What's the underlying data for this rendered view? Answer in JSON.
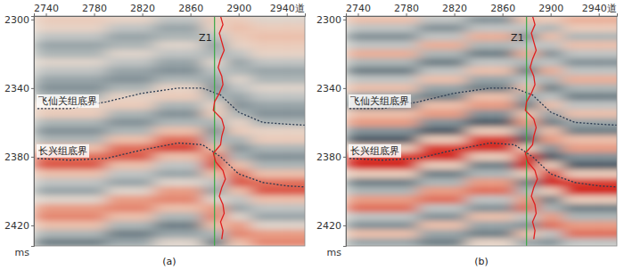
{
  "chart_data": [
    {
      "type": "heatmap",
      "title": "(a)",
      "y_label": "ms",
      "xlim": [
        2730,
        2955
      ],
      "ylim": [
        2298,
        2432
      ],
      "xticks": [
        2740,
        2780,
        2820,
        2860,
        2900,
        {
          "value": 2940,
          "label": "2940道"
        }
      ],
      "yticks": [
        2300,
        2340,
        2380,
        2420
      ],
      "zlim": [
        -1,
        1
      ],
      "cell_x": [
        2740,
        2760,
        2780,
        2800,
        2820,
        2840,
        2860,
        2880,
        2900,
        2920,
        2940,
        2960
      ],
      "cell_y": [
        2300,
        2305,
        2310,
        2315,
        2320,
        2325,
        2330,
        2335,
        2340,
        2345,
        2350,
        2355,
        2360,
        2365,
        2370,
        2375,
        2380,
        2385,
        2390,
        2395,
        2400,
        2405,
        2410,
        2415,
        2420,
        2425,
        2430
      ],
      "cells": [
        [
          0.2,
          0.1,
          -0.2,
          -0.4,
          -0.3,
          0.0,
          -0.2,
          -0.4,
          -0.5,
          -0.3,
          0.1,
          0.2,
          -0.3,
          -0.5,
          -0.3,
          0.3,
          0.7,
          0.8,
          0.3,
          -0.2,
          -0.4,
          0.0,
          0.5,
          0.6,
          0.3,
          -0.3,
          -0.6
        ],
        [
          0.2,
          0.1,
          -0.2,
          -0.4,
          -0.3,
          0.0,
          -0.2,
          -0.4,
          -0.5,
          -0.3,
          0.1,
          0.2,
          -0.3,
          -0.5,
          -0.3,
          0.3,
          0.7,
          0.8,
          0.3,
          -0.2,
          -0.4,
          0.0,
          0.5,
          0.6,
          0.3,
          -0.3,
          -0.6
        ],
        [
          0.2,
          0.1,
          -0.2,
          -0.4,
          -0.3,
          0.0,
          -0.2,
          -0.4,
          -0.5,
          -0.3,
          0.1,
          0.2,
          -0.3,
          -0.5,
          -0.3,
          0.3,
          0.7,
          0.8,
          0.3,
          -0.2,
          -0.4,
          0.0,
          0.5,
          0.6,
          0.3,
          -0.3,
          -0.6
        ],
        [
          0.1,
          -0.2,
          -0.4,
          -0.3,
          0.0,
          -0.2,
          -0.4,
          -0.5,
          -0.3,
          0.1,
          0.2,
          -0.3,
          -0.5,
          -0.3,
          0.3,
          0.7,
          0.8,
          0.3,
          -0.2,
          -0.4,
          0.0,
          0.5,
          0.6,
          0.3,
          -0.3,
          -0.6,
          -0.4
        ],
        [
          0.1,
          -0.2,
          -0.4,
          -0.3,
          0.0,
          -0.2,
          -0.4,
          -0.5,
          -0.3,
          0.1,
          0.2,
          -0.3,
          -0.5,
          -0.3,
          0.3,
          0.7,
          0.8,
          0.3,
          -0.2,
          -0.4,
          0.0,
          0.5,
          0.6,
          0.3,
          -0.3,
          -0.6,
          -0.4
        ],
        [
          -0.2,
          -0.4,
          -0.3,
          0.0,
          -0.2,
          -0.4,
          -0.5,
          -0.3,
          0.1,
          0.2,
          -0.3,
          -0.5,
          -0.3,
          0.3,
          0.7,
          0.9,
          0.3,
          -0.2,
          -0.4,
          0.0,
          0.5,
          0.6,
          0.3,
          -0.3,
          -0.6,
          -0.4,
          0.0
        ],
        [
          -0.2,
          -0.4,
          -0.3,
          0.0,
          -0.2,
          -0.4,
          -0.5,
          -0.3,
          0.1,
          0.2,
          -0.3,
          -0.5,
          -0.3,
          0.3,
          0.7,
          0.9,
          0.3,
          -0.2,
          -0.4,
          0.0,
          0.5,
          0.6,
          0.3,
          -0.3,
          -0.6,
          -0.4,
          0.0
        ],
        [
          0.2,
          0.1,
          -0.2,
          -0.4,
          -0.3,
          0.0,
          -0.2,
          -0.4,
          -0.5,
          -0.3,
          0.1,
          0.2,
          -0.3,
          -0.5,
          -0.3,
          0.3,
          0.7,
          0.8,
          0.3,
          -0.2,
          -0.4,
          0.0,
          0.5,
          0.6,
          0.3,
          -0.3,
          -0.6
        ],
        [
          0.2,
          0.3,
          0.2,
          0.1,
          -0.2,
          -0.4,
          -0.3,
          0.0,
          -0.2,
          -0.4,
          -0.5,
          -0.3,
          0.1,
          0.2,
          -0.3,
          -0.5,
          -0.3,
          0.3,
          0.7,
          0.8,
          0.3,
          -0.2,
          -0.4,
          0.0,
          0.5,
          0.6,
          0.3
        ],
        [
          0.0,
          0.2,
          0.3,
          0.2,
          0.1,
          -0.2,
          -0.4,
          -0.3,
          0.0,
          -0.2,
          -0.4,
          -0.5,
          -0.3,
          0.1,
          0.2,
          -0.3,
          -0.5,
          -0.3,
          0.3,
          0.7,
          0.8,
          0.3,
          -0.2,
          -0.4,
          0.0,
          0.5,
          0.6
        ],
        [
          0.0,
          0.2,
          0.3,
          0.2,
          0.1,
          -0.2,
          -0.4,
          -0.3,
          0.0,
          -0.2,
          -0.4,
          -0.5,
          -0.3,
          0.1,
          0.2,
          -0.3,
          -0.5,
          -0.3,
          0.3,
          0.7,
          0.8,
          0.3,
          -0.2,
          -0.4,
          0.0,
          0.5,
          0.6
        ],
        [
          0.0,
          0.2,
          0.3,
          0.2,
          0.1,
          -0.2,
          -0.4,
          -0.3,
          0.0,
          -0.2,
          -0.4,
          -0.5,
          -0.3,
          0.1,
          0.2,
          -0.3,
          -0.5,
          -0.3,
          0.3,
          0.7,
          0.8,
          0.3,
          -0.2,
          -0.4,
          0.0,
          0.5,
          0.6
        ]
      ],
      "horizons": [
        {
          "name": "飞仙关组底界",
          "color": "#2a3a50",
          "line_style": "dotted",
          "x": [
            2733,
            2760,
            2790,
            2820,
            2850,
            2870,
            2885,
            2900,
            2920,
            2940,
            2965
          ],
          "values": [
            2352,
            2352,
            2348,
            2343,
            2340,
            2340,
            2344,
            2354,
            2360,
            2361,
            2362
          ]
        },
        {
          "name": "长兴组底界",
          "color": "#2a3a50",
          "line_style": "dotted",
          "x": [
            2733,
            2760,
            2790,
            2820,
            2850,
            2870,
            2885,
            2900,
            2920,
            2940,
            2965
          ],
          "values": [
            2381,
            2382,
            2381,
            2376,
            2372,
            2373,
            2380,
            2390,
            2395,
            2397,
            2398
          ]
        }
      ],
      "well": {
        "name": "Z1",
        "trace": 2880,
        "color": "#3aa845",
        "log": {
          "color": "#e02020",
          "t": [
            2298,
            2303,
            2308,
            2313,
            2318,
            2323,
            2328,
            2333,
            2338,
            2343,
            2348,
            2353,
            2358,
            2363,
            2368,
            2373,
            2378,
            2383,
            2388,
            2393,
            2398,
            2403,
            2408,
            2413,
            2418,
            2423,
            2428
          ],
          "values": [
            2885,
            2887,
            2884,
            2886,
            2888,
            2885,
            2883,
            2886,
            2887,
            2884,
            2880,
            2879,
            2886,
            2888,
            2886,
            2885,
            2879,
            2881,
            2887,
            2889,
            2886,
            2884,
            2887,
            2888,
            2885,
            2887,
            2886
          ]
        }
      }
    },
    {
      "type": "heatmap",
      "title": "(b)",
      "y_label": "ms",
      "xlim": [
        2730,
        2955
      ],
      "ylim": [
        2298,
        2432
      ],
      "xticks": [
        2740,
        2780,
        2820,
        2860,
        2900,
        {
          "value": 2940,
          "label": "2940道"
        }
      ],
      "yticks": [
        2300,
        2340,
        2380,
        2420
      ],
      "zlim": [
        -1,
        1
      ],
      "cell_x": [
        2740,
        2760,
        2780,
        2800,
        2820,
        2840,
        2860,
        2880,
        2900,
        2920,
        2940,
        2960
      ],
      "cell_y": [
        2300,
        2305,
        2310,
        2315,
        2320,
        2325,
        2330,
        2335,
        2340,
        2345,
        2350,
        2355,
        2360,
        2365,
        2370,
        2375,
        2380,
        2385,
        2390,
        2395,
        2400,
        2405,
        2410,
        2415,
        2420,
        2425,
        2430
      ],
      "cells": [
        [
          0.3,
          -0.2,
          -0.5,
          -0.2,
          0.4,
          -0.3,
          -0.6,
          -0.2,
          0.3,
          -0.4,
          -0.6,
          0.3,
          0.5,
          -0.5,
          -0.8,
          0.2,
          0.9,
          1.0,
          0.2,
          -0.6,
          -0.3,
          0.5,
          0.7,
          -0.2,
          -0.5,
          0.3,
          -0.4
        ],
        [
          0.3,
          -0.2,
          -0.5,
          -0.2,
          0.4,
          -0.3,
          -0.6,
          -0.2,
          0.3,
          -0.4,
          -0.6,
          0.3,
          0.5,
          -0.5,
          -0.8,
          0.2,
          0.9,
          1.0,
          0.2,
          -0.6,
          -0.3,
          0.5,
          0.7,
          -0.2,
          -0.5,
          0.3,
          -0.4
        ],
        [
          0.3,
          -0.2,
          -0.5,
          -0.2,
          0.4,
          -0.3,
          -0.6,
          -0.2,
          0.3,
          -0.4,
          -0.6,
          0.3,
          0.5,
          -0.5,
          -0.8,
          0.2,
          0.9,
          1.0,
          0.2,
          -0.6,
          -0.3,
          0.5,
          0.7,
          -0.2,
          -0.5,
          0.3,
          -0.4
        ],
        [
          -0.2,
          -0.5,
          -0.2,
          0.4,
          -0.3,
          -0.6,
          -0.2,
          0.3,
          -0.4,
          -0.6,
          0.3,
          0.5,
          -0.5,
          -0.8,
          0.2,
          0.9,
          1.0,
          0.2,
          -0.6,
          -0.3,
          0.5,
          0.7,
          -0.2,
          -0.5,
          0.3,
          -0.4,
          -0.6
        ],
        [
          -0.2,
          -0.5,
          -0.2,
          0.4,
          -0.3,
          -0.6,
          -0.2,
          0.3,
          -0.4,
          -0.6,
          0.3,
          0.5,
          -0.5,
          -0.8,
          0.2,
          0.9,
          1.0,
          0.2,
          -0.6,
          -0.3,
          0.5,
          0.7,
          -0.2,
          -0.5,
          0.3,
          -0.4,
          -0.6
        ],
        [
          -0.5,
          -0.2,
          0.4,
          -0.3,
          -0.6,
          -0.2,
          0.3,
          -0.4,
          -0.6,
          0.3,
          0.5,
          -0.5,
          -0.8,
          0.2,
          0.9,
          1.0,
          0.2,
          -0.6,
          -0.3,
          0.5,
          0.7,
          -0.2,
          -0.5,
          0.3,
          -0.4,
          -0.6,
          0.1
        ],
        [
          -0.5,
          -0.2,
          0.4,
          -0.3,
          -0.6,
          -0.2,
          0.3,
          -0.4,
          -0.6,
          0.3,
          0.5,
          -0.5,
          -0.8,
          0.2,
          0.9,
          1.0,
          0.2,
          -0.6,
          -0.3,
          0.5,
          0.7,
          -0.2,
          -0.5,
          0.3,
          -0.4,
          -0.6,
          0.1
        ],
        [
          0.3,
          -0.2,
          -0.5,
          -0.2,
          0.4,
          -0.3,
          -0.6,
          -0.2,
          0.3,
          -0.4,
          -0.6,
          0.3,
          0.5,
          -0.5,
          -0.8,
          0.2,
          0.9,
          1.0,
          0.2,
          -0.6,
          -0.3,
          0.5,
          0.7,
          -0.2,
          -0.5,
          0.3,
          -0.4
        ],
        [
          0.2,
          -0.3,
          0.3,
          -0.2,
          -0.5,
          -0.2,
          0.4,
          -0.3,
          -0.6,
          -0.2,
          0.3,
          -0.4,
          -0.6,
          0.3,
          0.5,
          -0.5,
          -0.8,
          0.2,
          0.9,
          1.0,
          0.2,
          -0.6,
          -0.3,
          0.5,
          0.7,
          -0.2,
          -0.5
        ],
        [
          0.4,
          0.2,
          -0.3,
          0.3,
          -0.2,
          -0.5,
          -0.2,
          0.4,
          -0.3,
          -0.6,
          -0.2,
          0.3,
          -0.4,
          -0.6,
          0.3,
          0.5,
          -0.5,
          -0.8,
          0.2,
          0.9,
          1.0,
          0.2,
          -0.6,
          -0.3,
          0.5,
          0.7,
          -0.2
        ],
        [
          0.4,
          0.2,
          -0.3,
          0.3,
          -0.2,
          -0.5,
          -0.2,
          0.4,
          -0.3,
          -0.6,
          -0.2,
          0.3,
          -0.4,
          -0.6,
          0.3,
          0.5,
          -0.5,
          -0.8,
          0.2,
          0.9,
          1.0,
          0.2,
          -0.6,
          -0.3,
          0.5,
          0.7,
          -0.2
        ],
        [
          0.4,
          0.2,
          -0.3,
          0.3,
          -0.2,
          -0.5,
          -0.2,
          0.4,
          -0.3,
          -0.6,
          -0.2,
          0.3,
          -0.4,
          -0.6,
          0.3,
          0.5,
          -0.5,
          -0.8,
          0.2,
          0.9,
          1.0,
          0.2,
          -0.6,
          -0.3,
          0.5,
          0.7,
          -0.2
        ]
      ],
      "horizons": [
        {
          "name": "飞仙关组底界",
          "color": "#2a3a50",
          "line_style": "dotted",
          "x": [
            2733,
            2760,
            2790,
            2820,
            2850,
            2870,
            2885,
            2900,
            2920,
            2940,
            2965
          ],
          "values": [
            2352,
            2352,
            2348,
            2343,
            2340,
            2340,
            2344,
            2354,
            2360,
            2361,
            2362
          ]
        },
        {
          "name": "长兴组底界",
          "color": "#2a3a50",
          "line_style": "dotted",
          "x": [
            2733,
            2760,
            2790,
            2820,
            2850,
            2870,
            2885,
            2900,
            2920,
            2940,
            2965
          ],
          "values": [
            2381,
            2382,
            2381,
            2376,
            2372,
            2373,
            2380,
            2390,
            2395,
            2397,
            2398
          ]
        }
      ],
      "well": {
        "name": "Z1",
        "trace": 2880,
        "color": "#3aa845",
        "log": {
          "color": "#e02020",
          "t": [
            2298,
            2303,
            2308,
            2313,
            2318,
            2323,
            2328,
            2333,
            2338,
            2343,
            2348,
            2353,
            2358,
            2363,
            2368,
            2373,
            2378,
            2383,
            2388,
            2393,
            2398,
            2403,
            2408,
            2413,
            2418,
            2423,
            2428
          ],
          "values": [
            2885,
            2887,
            2884,
            2886,
            2888,
            2885,
            2883,
            2886,
            2887,
            2884,
            2880,
            2879,
            2886,
            2888,
            2886,
            2885,
            2879,
            2881,
            2887,
            2889,
            2886,
            2884,
            2887,
            2888,
            2885,
            2887,
            2886
          ]
        }
      }
    }
  ]
}
